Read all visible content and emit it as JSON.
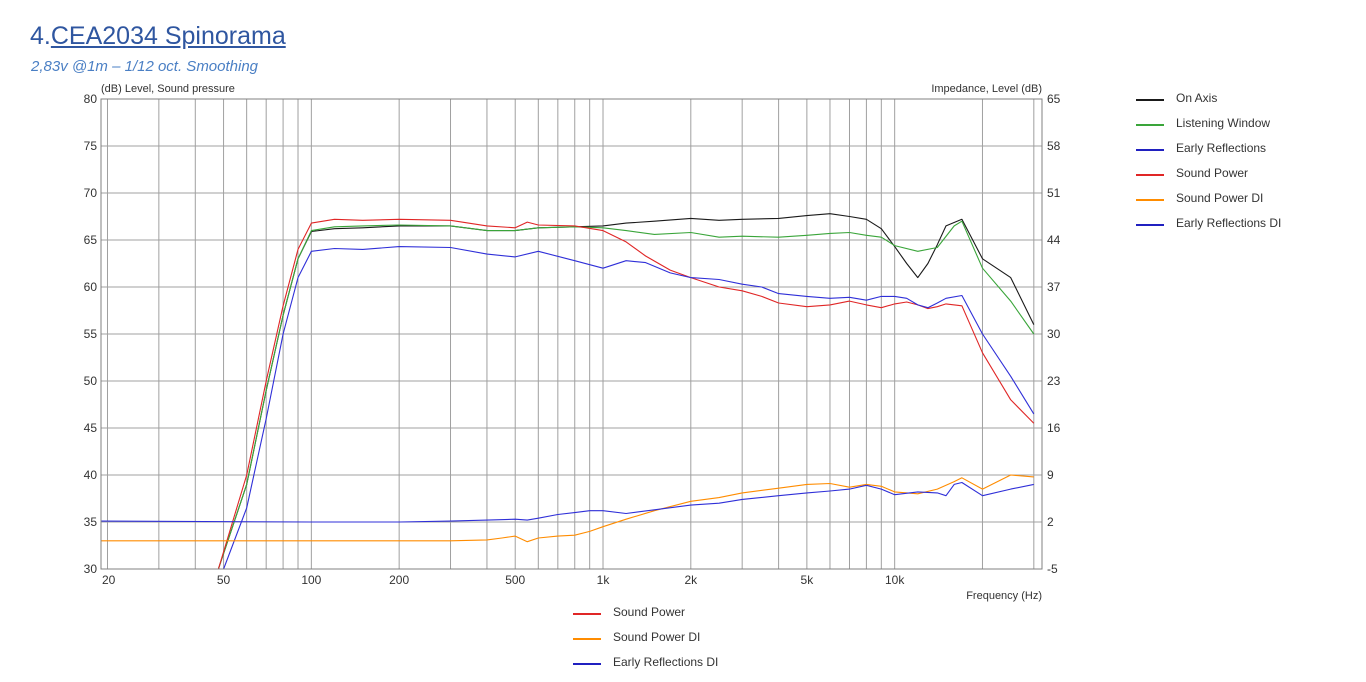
{
  "header": {
    "title_num": "4.",
    "title_text": "CEA2034 Spinorama",
    "subtitle": "2,83v @1m – 1/12 oct. Smoothing"
  },
  "colors": {
    "on_axis": "#1a1a1a",
    "listening_window": "#3aa53a",
    "early_reflections": "#2f2fd8",
    "sound_power": "#e02626",
    "sound_power_di": "#ff8c00",
    "early_reflections_di": "#2f2fd8",
    "grid": "#a0a0a0",
    "frame": "#808080"
  },
  "legend_right": [
    {
      "label": "On Axis",
      "color": "#1a1a1a"
    },
    {
      "label": "Listening Window",
      "color": "#3aa53a"
    },
    {
      "label": "Early Reflections",
      "color": "#2020c0"
    },
    {
      "label": "Sound Power",
      "color": "#e02626"
    },
    {
      "label": "Sound Power DI",
      "color": "#ff8c00"
    },
    {
      "label": "Early Reflections DI",
      "color": "#2020c0"
    }
  ],
  "legend_bottom": [
    {
      "label": "Sound Power",
      "color": "#e02626"
    },
    {
      "label": "Sound Power DI",
      "color": "#ff8c00"
    },
    {
      "label": "Early Reflections DI",
      "color": "#2020c0"
    }
  ],
  "chart_data": {
    "type": "line",
    "title": "CEA2034 Spinorama",
    "ylabel_left": "(dB)  Level, Sound pressure",
    "ylabel_right": "Impedance, Level  (dB)",
    "xlabel": "Frequency  (Hz)",
    "x_scale": "log",
    "xlim": [
      19,
      32000
    ],
    "ylim": [
      30,
      80
    ],
    "ylim_right": [
      -5,
      65
    ],
    "grid": true,
    "x_ticks": [
      {
        "v": 20,
        "label": "20"
      },
      {
        "v": 50,
        "label": "50"
      },
      {
        "v": 100,
        "label": "100"
      },
      {
        "v": 200,
        "label": "200"
      },
      {
        "v": 500,
        "label": "500"
      },
      {
        "v": 1000,
        "label": "1k"
      },
      {
        "v": 2000,
        "label": "2k"
      },
      {
        "v": 5000,
        "label": "5k"
      },
      {
        "v": 10000,
        "label": "10k"
      }
    ],
    "y_ticks_left": [
      "30",
      "35",
      "40",
      "45",
      "50",
      "55",
      "60",
      "65",
      "70",
      "75",
      "80"
    ],
    "y_ticks_right": [
      "-5",
      "2",
      "9",
      "16",
      "23",
      "30",
      "37",
      "44",
      "51",
      "58",
      "65"
    ],
    "series": [
      {
        "name": "On Axis",
        "color": "#1a1a1a",
        "x": [
          48,
          60,
          70,
          80,
          90,
          100,
          120,
          150,
          200,
          300,
          400,
          500,
          600,
          800,
          1000,
          1200,
          1500,
          2000,
          2500,
          3000,
          4000,
          5000,
          6000,
          7000,
          8000,
          9000,
          10000,
          11000,
          12000,
          13000,
          14000,
          15000,
          17000,
          20000,
          25000,
          30000
        ],
        "y": [
          30,
          39,
          49,
          57,
          63,
          65.9,
          66.2,
          66.3,
          66.5,
          66.5,
          66,
          66,
          66.3,
          66.4,
          66.5,
          66.8,
          67,
          67.3,
          67.1,
          67.2,
          67.3,
          67.6,
          67.8,
          67.5,
          67.2,
          66.2,
          64.3,
          62.5,
          61,
          62.5,
          64.5,
          66.5,
          67.2,
          63,
          61,
          56
        ]
      },
      {
        "name": "Listening Window",
        "color": "#3aa53a",
        "x": [
          48,
          60,
          70,
          80,
          90,
          100,
          120,
          150,
          200,
          300,
          400,
          500,
          600,
          800,
          1000,
          1200,
          1500,
          2000,
          2500,
          3000,
          4000,
          5000,
          6000,
          7000,
          8000,
          9000,
          10000,
          12000,
          14000,
          16000,
          17000,
          20000,
          25000,
          30000
        ],
        "y": [
          30,
          39,
          49,
          57,
          63,
          66,
          66.4,
          66.5,
          66.6,
          66.5,
          66,
          66,
          66.3,
          66.4,
          66.3,
          66,
          65.6,
          65.8,
          65.3,
          65.4,
          65.3,
          65.5,
          65.7,
          65.8,
          65.5,
          65.3,
          64.4,
          63.8,
          64.2,
          66.5,
          67,
          62,
          58.5,
          55
        ]
      },
      {
        "name": "Sound Power",
        "color": "#e02626",
        "x": [
          48,
          60,
          70,
          80,
          90,
          100,
          120,
          150,
          200,
          300,
          400,
          500,
          550,
          600,
          800,
          1000,
          1200,
          1400,
          1700,
          2000,
          2500,
          3000,
          3500,
          4000,
          5000,
          6000,
          7000,
          8000,
          9000,
          10000,
          11000,
          12000,
          13000,
          14000,
          15000,
          17000,
          20000,
          25000,
          30000
        ],
        "y": [
          30,
          40,
          50,
          58,
          64,
          66.8,
          67.2,
          67.1,
          67.2,
          67.1,
          66.5,
          66.3,
          66.9,
          66.6,
          66.5,
          66,
          64.8,
          63.3,
          61.8,
          61,
          60,
          59.6,
          59,
          58.3,
          57.9,
          58.1,
          58.5,
          58.1,
          57.8,
          58.2,
          58.4,
          58.1,
          57.7,
          57.9,
          58.2,
          58,
          53,
          48,
          45.5
        ]
      },
      {
        "name": "Early Reflections",
        "color": "#2f2fd8",
        "x": [
          50,
          60,
          70,
          80,
          90,
          100,
          120,
          150,
          200,
          300,
          400,
          500,
          600,
          800,
          1000,
          1200,
          1400,
          1700,
          2000,
          2500,
          3000,
          3500,
          4000,
          5000,
          6000,
          7000,
          8000,
          9000,
          10000,
          11000,
          12000,
          13000,
          14000,
          15000,
          17000,
          20000,
          25000,
          30000
        ],
        "y": [
          30,
          36.5,
          46,
          55,
          61,
          63.8,
          64.1,
          64,
          64.3,
          64.2,
          63.5,
          63.2,
          63.8,
          62.8,
          62,
          62.8,
          62.6,
          61.5,
          61,
          60.8,
          60.3,
          60,
          59.3,
          59,
          58.8,
          58.9,
          58.6,
          59,
          59,
          58.8,
          58.1,
          57.8,
          58.3,
          58.8,
          59.1,
          55,
          50.5,
          46.5
        ]
      },
      {
        "name": "Sound Power DI",
        "color": "#ff8c00",
        "x": [
          19,
          100,
          200,
          300,
          400,
          450,
          500,
          550,
          600,
          700,
          800,
          900,
          1000,
          1200,
          1500,
          2000,
          2500,
          3000,
          4000,
          5000,
          6000,
          7000,
          8000,
          9000,
          10000,
          12000,
          14000,
          16000,
          17000,
          20000,
          25000,
          30000
        ],
        "y": [
          33,
          33,
          33,
          33,
          33.1,
          33.3,
          33.5,
          32.9,
          33.3,
          33.5,
          33.6,
          34,
          34.5,
          35.3,
          36.2,
          37.2,
          37.6,
          38.1,
          38.6,
          39,
          39.1,
          38.7,
          39,
          38.8,
          38.2,
          38,
          38.5,
          39.3,
          39.7,
          38.5,
          40,
          39.8
        ]
      },
      {
        "name": "Early Reflections DI",
        "color": "#2f2fd8",
        "x": [
          19,
          100,
          200,
          300,
          400,
          500,
          550,
          600,
          700,
          800,
          900,
          1000,
          1200,
          1500,
          2000,
          2500,
          3000,
          4000,
          5000,
          6000,
          7000,
          8000,
          9000,
          10000,
          12000,
          14000,
          15000,
          16000,
          17000,
          20000,
          25000,
          30000
        ],
        "y": [
          35.1,
          35,
          35,
          35.1,
          35.2,
          35.3,
          35.2,
          35.4,
          35.8,
          36,
          36.2,
          36.2,
          35.9,
          36.3,
          36.8,
          37,
          37.4,
          37.8,
          38.1,
          38.3,
          38.5,
          38.9,
          38.5,
          37.9,
          38.2,
          38.1,
          37.8,
          39,
          39.2,
          37.8,
          38.5,
          39
        ]
      }
    ]
  }
}
